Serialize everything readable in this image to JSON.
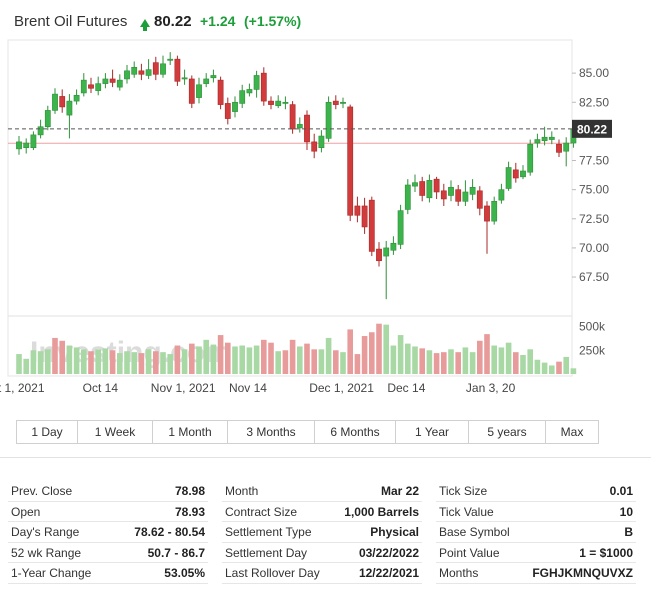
{
  "header": {
    "title": "Brent Oil Futures",
    "price": "80.22",
    "change": "+1.24",
    "change_pct": "(+1.57%)",
    "up_color": "#1e9e3b"
  },
  "chart_data": {
    "type": "candlestick",
    "last_price": 80.22,
    "last_price_label": "80.22",
    "y_ticks": [
      "85.00",
      "82.50",
      "80.00",
      "77.50",
      "75.00",
      "72.50",
      "70.00",
      "67.50"
    ],
    "y_tick_values": [
      85.0,
      82.5,
      80.0,
      77.5,
      75.0,
      72.5,
      70.0,
      67.5
    ],
    "ylim": [
      64.5,
      87.5
    ],
    "volume_ticks": [
      "500k",
      "250k"
    ],
    "volume_tick_values": [
      500,
      250
    ],
    "volume_max": 590,
    "x_ticks": [
      "t 1, 2021",
      "Oct 14",
      "Nov 1, 2021",
      "Nov 14",
      "Dec 1, 2021",
      "Dec 14",
      "Jan 3, 20"
    ],
    "x_tick_index": [
      0.3,
      11.3,
      22.8,
      31.8,
      44.8,
      53.8,
      65.5
    ],
    "reference_price": 78.98,
    "watermark": "Investing.com",
    "up_color": "#3cb44b",
    "down_color": "#d23b3b",
    "candles": [
      [
        0,
        78.5,
        79.1,
        79.6,
        78.0
      ],
      [
        1,
        78.6,
        79.0,
        79.4,
        78.1
      ],
      [
        2,
        78.6,
        79.7,
        80.0,
        78.4
      ],
      [
        3,
        79.7,
        80.4,
        81.0,
        79.4
      ],
      [
        4,
        80.4,
        81.8,
        82.2,
        80.1
      ],
      [
        5,
        81.8,
        83.2,
        83.7,
        81.5
      ],
      [
        6,
        83.0,
        82.1,
        83.6,
        81.6
      ],
      [
        7,
        81.4,
        82.6,
        83.2,
        79.4
      ],
      [
        8,
        82.6,
        83.1,
        83.6,
        82.3
      ],
      [
        9,
        83.3,
        84.4,
        85.0,
        83.0
      ],
      [
        10,
        84.0,
        83.7,
        84.6,
        83.3
      ],
      [
        11,
        83.5,
        84.1,
        84.7,
        83.1
      ],
      [
        12,
        84.1,
        84.5,
        85.0,
        83.7
      ],
      [
        13,
        84.5,
        84.2,
        85.3,
        83.8
      ],
      [
        14,
        83.8,
        84.4,
        84.9,
        83.5
      ],
      [
        15,
        84.5,
        85.2,
        85.7,
        84.1
      ],
      [
        16,
        84.9,
        85.5,
        86.0,
        84.6
      ],
      [
        17,
        85.2,
        84.9,
        85.8,
        84.4
      ],
      [
        18,
        84.8,
        85.3,
        86.2,
        84.5
      ],
      [
        19,
        85.9,
        84.9,
        86.4,
        84.4
      ],
      [
        20,
        84.9,
        85.8,
        86.5,
        84.6
      ],
      [
        21,
        86.1,
        86.2,
        86.8,
        85.7
      ],
      [
        22,
        86.2,
        84.3,
        86.5,
        83.9
      ],
      [
        23,
        84.5,
        84.6,
        85.3,
        84.0
      ],
      [
        24,
        84.5,
        82.4,
        84.8,
        82.0
      ],
      [
        25,
        82.9,
        84.0,
        84.6,
        82.4
      ],
      [
        26,
        84.1,
        84.5,
        85.0,
        83.8
      ],
      [
        27,
        84.6,
        84.8,
        85.3,
        84.2
      ],
      [
        28,
        84.4,
        82.3,
        84.7,
        81.9
      ],
      [
        29,
        82.4,
        81.1,
        82.9,
        80.6
      ],
      [
        30,
        81.7,
        82.5,
        83.0,
        81.2
      ],
      [
        31,
        82.4,
        83.5,
        84.0,
        82.0
      ],
      [
        32,
        83.3,
        83.6,
        84.1,
        83.0
      ],
      [
        33,
        83.6,
        84.8,
        85.2,
        82.9
      ],
      [
        34,
        85.0,
        82.6,
        85.5,
        82.2
      ],
      [
        35,
        82.6,
        82.3,
        83.0,
        81.9
      ],
      [
        36,
        82.2,
        82.6,
        83.1,
        82.0
      ],
      [
        37,
        82.4,
        82.5,
        83.0,
        81.9
      ],
      [
        38,
        82.3,
        80.2,
        82.6,
        79.8
      ],
      [
        39,
        80.3,
        80.6,
        81.2,
        79.9
      ],
      [
        40,
        81.4,
        79.1,
        81.8,
        78.4
      ],
      [
        41,
        79.1,
        78.3,
        79.8,
        77.7
      ],
      [
        42,
        78.6,
        79.6,
        80.1,
        78.2
      ],
      [
        43,
        79.4,
        82.5,
        83.0,
        79.1
      ],
      [
        44,
        82.6,
        82.3,
        83.1,
        81.9
      ],
      [
        45,
        82.4,
        82.5,
        82.9,
        82.0
      ],
      [
        46,
        82.1,
        72.8,
        82.3,
        72.3
      ],
      [
        47,
        73.6,
        72.8,
        74.4,
        72.2
      ],
      [
        48,
        73.6,
        71.8,
        74.3,
        71.2
      ],
      [
        49,
        74.1,
        69.7,
        74.4,
        69.3
      ],
      [
        50,
        69.9,
        68.9,
        70.5,
        68.4
      ],
      [
        51,
        69.3,
        70.0,
        70.6,
        65.6
      ],
      [
        52,
        69.8,
        70.4,
        71.0,
        69.4
      ],
      [
        53,
        70.3,
        73.2,
        73.7,
        69.9
      ],
      [
        54,
        73.3,
        75.4,
        75.9,
        72.9
      ],
      [
        55,
        75.3,
        75.6,
        76.3,
        74.8
      ],
      [
        56,
        75.7,
        74.5,
        76.1,
        74.0
      ],
      [
        57,
        74.3,
        75.8,
        76.3,
        73.9
      ],
      [
        58,
        75.9,
        74.8,
        76.1,
        74.2
      ],
      [
        59,
        74.9,
        74.2,
        75.5,
        73.6
      ],
      [
        60,
        74.5,
        75.2,
        75.8,
        74.0
      ],
      [
        61,
        75.0,
        74.0,
        75.4,
        73.6
      ],
      [
        62,
        74.0,
        74.8,
        75.8,
        73.6
      ],
      [
        63,
        74.6,
        75.2,
        75.9,
        74.1
      ],
      [
        64,
        74.9,
        73.4,
        75.3,
        72.8
      ],
      [
        65,
        73.6,
        72.3,
        74.0,
        69.5
      ],
      [
        66,
        72.3,
        74.0,
        74.4,
        72.0
      ],
      [
        67,
        74.1,
        75.0,
        75.5,
        73.8
      ],
      [
        68,
        75.1,
        76.9,
        77.4,
        74.9
      ],
      [
        69,
        76.7,
        76.0,
        77.3,
        75.6
      ],
      [
        70,
        76.1,
        76.6,
        77.1,
        75.9
      ],
      [
        71,
        76.5,
        78.9,
        79.3,
        76.2
      ],
      [
        72,
        79.0,
        79.3,
        79.8,
        78.6
      ],
      [
        73,
        79.2,
        79.5,
        80.4,
        78.8
      ],
      [
        74,
        79.3,
        79.5,
        80.0,
        78.9
      ],
      [
        75,
        78.9,
        78.2,
        79.3,
        77.8
      ],
      [
        76,
        78.3,
        79.0,
        79.5,
        77.0
      ],
      [
        77,
        79.0,
        80.2,
        80.5,
        78.6
      ]
    ],
    "volumes": [
      {
        "i": 0,
        "v": 210,
        "up": true
      },
      {
        "i": 1,
        "v": 160,
        "up": true
      },
      {
        "i": 2,
        "v": 250,
        "up": true
      },
      {
        "i": 3,
        "v": 240,
        "up": true
      },
      {
        "i": 4,
        "v": 260,
        "up": true
      },
      {
        "i": 5,
        "v": 380,
        "up": false
      },
      {
        "i": 6,
        "v": 350,
        "up": false
      },
      {
        "i": 7,
        "v": 300,
        "up": true
      },
      {
        "i": 8,
        "v": 280,
        "up": true
      },
      {
        "i": 9,
        "v": 260,
        "up": true
      },
      {
        "i": 10,
        "v": 240,
        "up": false
      },
      {
        "i": 11,
        "v": 260,
        "up": true
      },
      {
        "i": 12,
        "v": 270,
        "up": true
      },
      {
        "i": 13,
        "v": 250,
        "up": false
      },
      {
        "i": 14,
        "v": 220,
        "up": true
      },
      {
        "i": 15,
        "v": 240,
        "up": true
      },
      {
        "i": 16,
        "v": 230,
        "up": true
      },
      {
        "i": 17,
        "v": 220,
        "up": false
      },
      {
        "i": 18,
        "v": 260,
        "up": true
      },
      {
        "i": 19,
        "v": 240,
        "up": false
      },
      {
        "i": 20,
        "v": 230,
        "up": true
      },
      {
        "i": 21,
        "v": 210,
        "up": true
      },
      {
        "i": 22,
        "v": 300,
        "up": false
      },
      {
        "i": 23,
        "v": 260,
        "up": true
      },
      {
        "i": 24,
        "v": 320,
        "up": false
      },
      {
        "i": 25,
        "v": 290,
        "up": true
      },
      {
        "i": 26,
        "v": 360,
        "up": true
      },
      {
        "i": 27,
        "v": 310,
        "up": true
      },
      {
        "i": 28,
        "v": 410,
        "up": false
      },
      {
        "i": 29,
        "v": 330,
        "up": false
      },
      {
        "i": 30,
        "v": 290,
        "up": true
      },
      {
        "i": 31,
        "v": 300,
        "up": true
      },
      {
        "i": 32,
        "v": 280,
        "up": true
      },
      {
        "i": 33,
        "v": 300,
        "up": true
      },
      {
        "i": 34,
        "v": 360,
        "up": false
      },
      {
        "i": 35,
        "v": 330,
        "up": false
      },
      {
        "i": 36,
        "v": 240,
        "up": true
      },
      {
        "i": 37,
        "v": 250,
        "up": false
      },
      {
        "i": 38,
        "v": 360,
        "up": false
      },
      {
        "i": 39,
        "v": 290,
        "up": true
      },
      {
        "i": 40,
        "v": 320,
        "up": false
      },
      {
        "i": 41,
        "v": 260,
        "up": false
      },
      {
        "i": 42,
        "v": 260,
        "up": true
      },
      {
        "i": 43,
        "v": 380,
        "up": true
      },
      {
        "i": 44,
        "v": 250,
        "up": false
      },
      {
        "i": 45,
        "v": 230,
        "up": true
      },
      {
        "i": 46,
        "v": 470,
        "up": false
      },
      {
        "i": 47,
        "v": 210,
        "up": false
      },
      {
        "i": 48,
        "v": 400,
        "up": false
      },
      {
        "i": 49,
        "v": 440,
        "up": false
      },
      {
        "i": 50,
        "v": 530,
        "up": false
      },
      {
        "i": 51,
        "v": 520,
        "up": true
      },
      {
        "i": 52,
        "v": 300,
        "up": true
      },
      {
        "i": 53,
        "v": 410,
        "up": true
      },
      {
        "i": 54,
        "v": 320,
        "up": true
      },
      {
        "i": 55,
        "v": 290,
        "up": true
      },
      {
        "i": 56,
        "v": 270,
        "up": false
      },
      {
        "i": 57,
        "v": 250,
        "up": true
      },
      {
        "i": 58,
        "v": 220,
        "up": false
      },
      {
        "i": 59,
        "v": 230,
        "up": false
      },
      {
        "i": 60,
        "v": 260,
        "up": true
      },
      {
        "i": 61,
        "v": 230,
        "up": false
      },
      {
        "i": 62,
        "v": 280,
        "up": true
      },
      {
        "i": 63,
        "v": 230,
        "up": true
      },
      {
        "i": 64,
        "v": 350,
        "up": false
      },
      {
        "i": 65,
        "v": 420,
        "up": false
      },
      {
        "i": 66,
        "v": 300,
        "up": true
      },
      {
        "i": 67,
        "v": 280,
        "up": true
      },
      {
        "i": 68,
        "v": 330,
        "up": true
      },
      {
        "i": 69,
        "v": 230,
        "up": false
      },
      {
        "i": 70,
        "v": 200,
        "up": true
      },
      {
        "i": 71,
        "v": 260,
        "up": true
      },
      {
        "i": 72,
        "v": 150,
        "up": true
      },
      {
        "i": 73,
        "v": 120,
        "up": true
      },
      {
        "i": 74,
        "v": 90,
        "up": true
      },
      {
        "i": 75,
        "v": 130,
        "up": false
      },
      {
        "i": 76,
        "v": 180,
        "up": true
      },
      {
        "i": 77,
        "v": 60,
        "up": true
      }
    ]
  },
  "range_buttons": [
    "1 Day",
    "1 Week",
    "1 Month",
    "3 Months",
    "6 Months",
    "1 Year",
    "5 years",
    "Max"
  ],
  "stats": {
    "col1": [
      {
        "label": "Prev. Close",
        "value": "78.98"
      },
      {
        "label": "Open",
        "value": "78.93"
      },
      {
        "label": "Day's Range",
        "value": "78.62 - 80.54"
      },
      {
        "label": "52 wk Range",
        "value": "50.7 - 86.7"
      },
      {
        "label": "1-Year Change",
        "value": "53.05%"
      }
    ],
    "col2": [
      {
        "label": "Month",
        "value": "Mar 22"
      },
      {
        "label": "Contract Size",
        "value": "1,000 Barrels"
      },
      {
        "label": "Settlement Type",
        "value": "Physical"
      },
      {
        "label": "Settlement Day",
        "value": "03/22/2022"
      },
      {
        "label": "Last Rollover Day",
        "value": "12/22/2021"
      }
    ],
    "col3": [
      {
        "label": "Tick Size",
        "value": "0.01"
      },
      {
        "label": "Tick Value",
        "value": "10"
      },
      {
        "label": "Base Symbol",
        "value": "B"
      },
      {
        "label": "Point Value",
        "value": "1 = $1000"
      },
      {
        "label": "Months",
        "value": "FGHJKMNQUVXZ"
      }
    ]
  }
}
